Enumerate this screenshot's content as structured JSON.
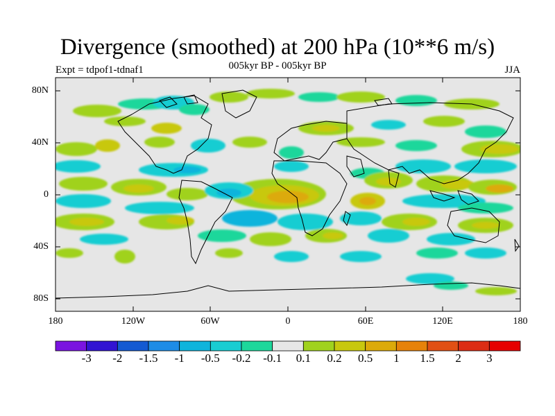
{
  "title": "Divergence (smoothed) at 200 hPa (10**6 m/s)",
  "subtitle": "005kyr BP - 005kyr BP",
  "experiment": "Expt = tdpof1-tdnaf1",
  "season": "JJA",
  "lat_labels": [
    "80N",
    "40N",
    "0",
    "40S",
    "80S"
  ],
  "lon_labels": [
    "180",
    "120W",
    "60W",
    "0",
    "60E",
    "120E",
    "180"
  ],
  "colorbar": {
    "labels": [
      "-3",
      "-2",
      "-1.5",
      "-1",
      "-0.5",
      "-0.2",
      "-0.1",
      "0.1",
      "0.2",
      "0.5",
      "1",
      "1.5",
      "2",
      "3"
    ],
    "colors": [
      "#7a14e0",
      "#3214d2",
      "#145ad2",
      "#1e8ce6",
      "#0fb4dc",
      "#19cdd2",
      "#1ed79b",
      "#e6e6e6",
      "#a0d21e",
      "#c8c80f",
      "#dcaa0a",
      "#e6820a",
      "#e15014",
      "#dc2d14",
      "#e60000"
    ]
  },
  "colors": {
    "background": "#e6e6e6",
    "coast": "#000000"
  }
}
